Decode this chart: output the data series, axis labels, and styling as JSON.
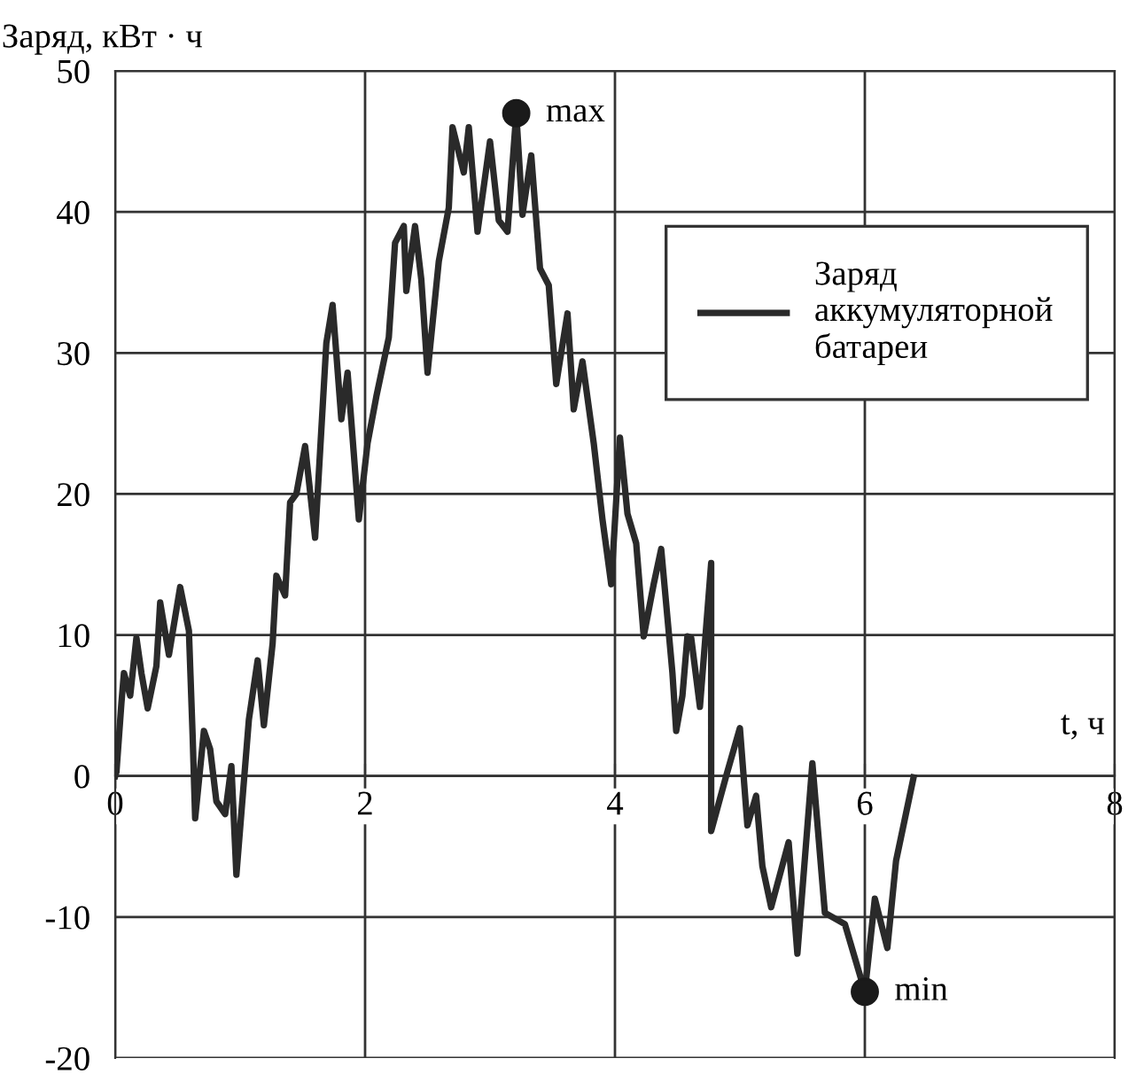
{
  "chart_data": {
    "type": "line",
    "xlabel": "t, ч",
    "ylabel": "Заряд, кВт · ч",
    "xlim": [
      0,
      8
    ],
    "ylim": [
      -20,
      50
    ],
    "xticks": [
      0,
      2,
      4,
      6,
      8
    ],
    "yticks": [
      -20,
      -10,
      0,
      10,
      20,
      30,
      40,
      50
    ],
    "grid": true,
    "legend": "top right",
    "series": [
      {
        "name": "Заряд\nаккумуляторной\nбатареи",
        "color": "#2a2a2a",
        "x": [
          0,
          0.01,
          0.05,
          0.07,
          0.12,
          0.17,
          0.21,
          0.26,
          0.33,
          0.36,
          0.43,
          0.52,
          0.59,
          0.62,
          0.64,
          0.71,
          0.76,
          0.81,
          0.88,
          0.93,
          0.97,
          1.07,
          1.14,
          1.19,
          1.26,
          1.29,
          1.36,
          1.4,
          1.45,
          1.52,
          1.6,
          1.69,
          1.74,
          1.81,
          1.86,
          1.95,
          2.02,
          2.09,
          2.19,
          2.24,
          2.31,
          2.33,
          2.4,
          2.45,
          2.5,
          2.59,
          2.67,
          2.7,
          2.79,
          2.83,
          2.9,
          3.0,
          3.07,
          3.14,
          3.21,
          3.26,
          3.33,
          3.4,
          3.47,
          3.53,
          3.62,
          3.67,
          3.74,
          3.83,
          3.9,
          3.97,
          4.04,
          4.1,
          4.17,
          4.23,
          4.31,
          4.37,
          4.46,
          4.49,
          4.54,
          4.58,
          4.61,
          4.68,
          4.77,
          4.77,
          4.89,
          5.0,
          5.06,
          5.13,
          5.18,
          5.25,
          5.39,
          5.46,
          5.58,
          5.68,
          5.84,
          6.0,
          6.08,
          6.18,
          6.25,
          6.39
        ],
        "values": [
          0,
          0.3,
          5.2,
          7.3,
          5.7,
          9.8,
          7.3,
          4.8,
          7.8,
          12.3,
          8.6,
          13.4,
          10.3,
          2.8,
          -3,
          3.2,
          1.9,
          -1.8,
          -2.7,
          0.7,
          -7,
          4,
          8.2,
          3.6,
          9.4,
          14.2,
          12.8,
          19.4,
          20,
          23.4,
          16.9,
          30.7,
          33.4,
          25.3,
          28.6,
          18.2,
          23.6,
          26.9,
          31.1,
          37.8,
          39,
          34.4,
          39,
          35.2,
          28.6,
          36.5,
          40.3,
          46,
          42.8,
          46,
          38.6,
          45,
          39.4,
          38.6,
          47,
          39.8,
          44,
          36,
          34.8,
          27.8,
          32.8,
          26,
          29.4,
          23.6,
          18.2,
          13.6,
          24,
          18.6,
          16.5,
          9.9,
          13.6,
          16.1,
          7.3,
          3.2,
          5.7,
          9.9,
          9.8,
          4.9,
          15.1,
          -3.9,
          0,
          3.4,
          -3.5,
          -1.4,
          -6.4,
          -9.3,
          -4.7,
          -12.6,
          0.9,
          -9.7,
          -10.5,
          -15.3,
          -8.7,
          -12.2,
          -6,
          -0.1
        ]
      },
      {
        "type": "scatter",
        "color": "#1a1a1a",
        "marker": "circle",
        "x": [
          3.21,
          6.0
        ],
        "values": [
          47,
          -15.3
        ]
      }
    ],
    "annotations": [
      {
        "text": "max",
        "x": 3.21,
        "y": 47
      },
      {
        "text": "min",
        "x": 6.0,
        "y": -15.3
      }
    ]
  }
}
